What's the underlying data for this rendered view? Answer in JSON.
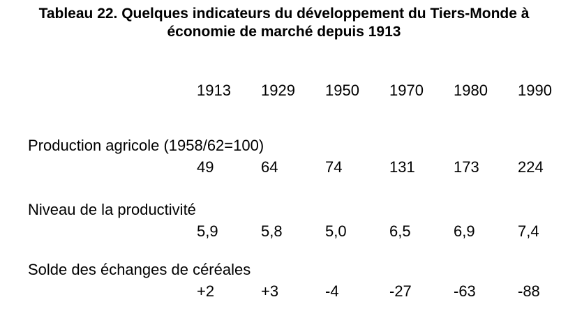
{
  "title": {
    "line1": "Tableau 22. Quelques indicateurs du développement du Tiers-Monde à",
    "line2": "économie de marché depuis 1913"
  },
  "table": {
    "years": [
      "1913",
      "1929",
      "1950",
      "1970",
      "1980",
      "1990"
    ],
    "rows": [
      {
        "label": "Production agricole (1958/62=100)",
        "values": [
          "49",
          "64",
          "74",
          "131",
          "173",
          "224"
        ]
      },
      {
        "label": "Niveau de la productivité",
        "values": [
          "5,9",
          "5,8",
          "5,0",
          "6,5",
          "6,9",
          "7,4"
        ]
      },
      {
        "label": "Solde des échanges de céréales",
        "values": [
          "+2",
          "+3",
          "-4",
          "-27",
          "-63",
          "-88"
        ]
      }
    ]
  },
  "colors": {
    "text": "#000000",
    "background": "#ffffff"
  }
}
